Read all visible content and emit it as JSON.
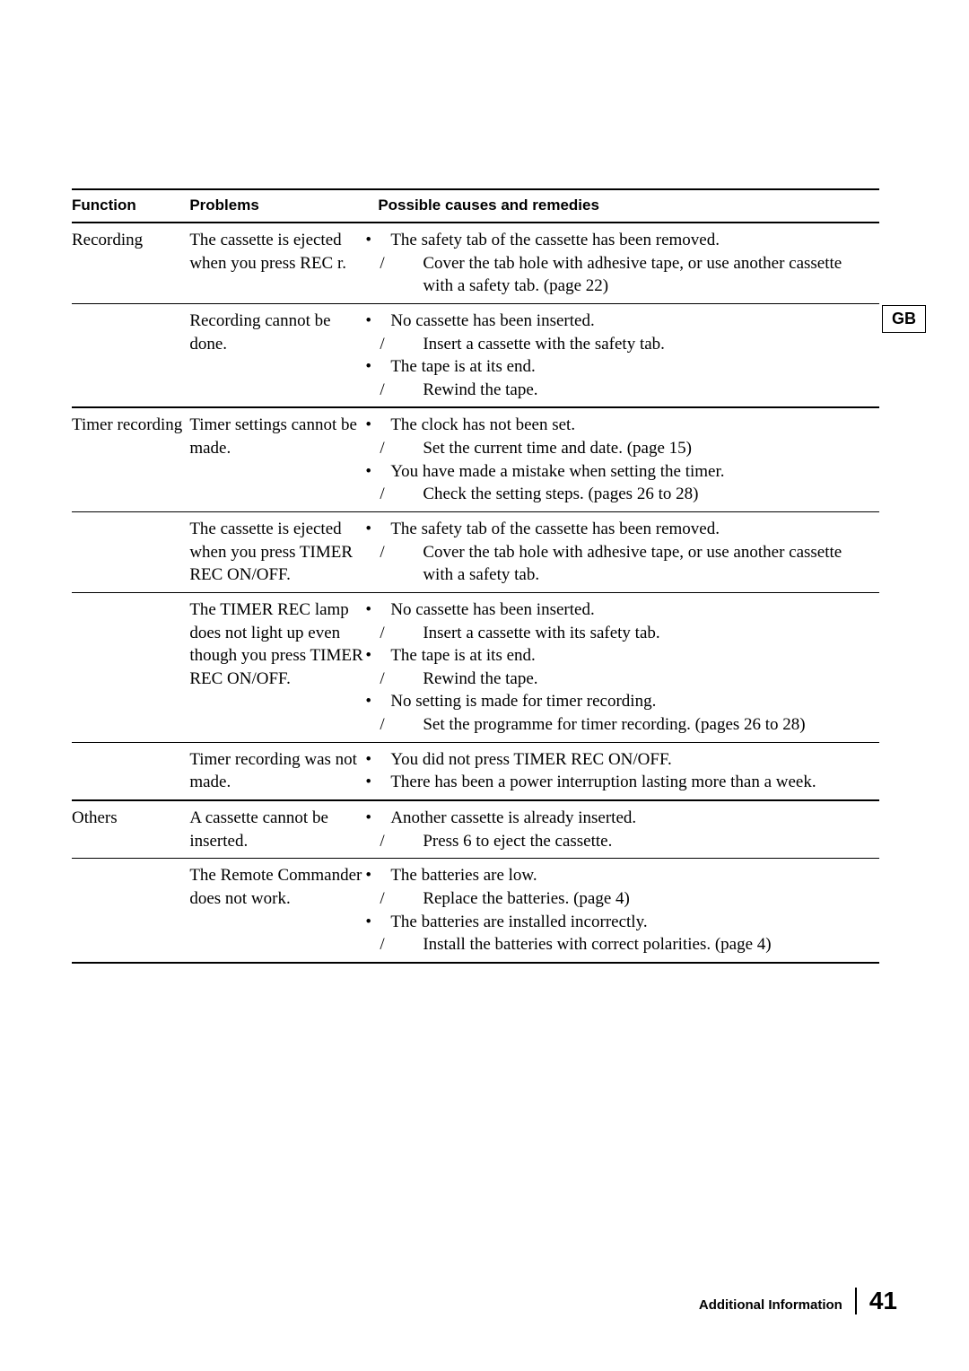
{
  "sideTab": "GB",
  "footer": {
    "section": "Additional Information",
    "page": "41"
  },
  "headers": {
    "function": "Function",
    "problems": "Problems",
    "remedies": "Possible causes and remedies"
  },
  "rows": [
    {
      "function": "Recording",
      "problem": "The cassette is ejected when you press REC r.",
      "remedies": [
        {
          "cause": "The safety tab of the cassette has been removed.",
          "fix": "Cover the tab hole with adhesive tape, or use another cassette with a safety tab. (page 22)"
        }
      ]
    },
    {
      "function": "",
      "problem": "Recording cannot be done.",
      "remedies": [
        {
          "cause": "No cassette has been inserted.",
          "fix": "Insert a cassette with the safety tab."
        },
        {
          "cause": "The tape is at its end.",
          "fix": "Rewind the tape."
        }
      ],
      "sectionEnd": true
    },
    {
      "function": "Timer recording",
      "problem": "Timer settings cannot be made.",
      "remedies": [
        {
          "cause": "The clock has not been set.",
          "fix": "Set the current time and date. (page 15)"
        },
        {
          "cause": "You have made a mistake when setting the timer.",
          "fix": "Check the setting steps. (pages 26 to 28)"
        }
      ]
    },
    {
      "function": "",
      "problem": "The cassette is ejected when you press TIMER REC ON/OFF.",
      "remedies": [
        {
          "cause": "The safety tab of the cassette has been removed.",
          "fix": "Cover the tab hole with adhesive tape, or use another cassette with a safety tab."
        }
      ]
    },
    {
      "function": "",
      "problem": "The TIMER REC lamp does not light up even though you press TIMER REC ON/OFF.",
      "remedies": [
        {
          "cause": "No cassette has been inserted.",
          "fix": "Insert a cassette with its safety tab."
        },
        {
          "cause": "The tape is at its end.",
          "fix": "Rewind the tape."
        },
        {
          "cause": "No setting is made for timer recording.",
          "fix": "Set the programme for timer recording. (pages 26 to 28)"
        }
      ]
    },
    {
      "function": "",
      "problem": "Timer recording was not made.",
      "remedies": [
        {
          "cause": "You did not press TIMER REC ON/OFF."
        },
        {
          "cause": "There has been a power interruption lasting more than a week."
        }
      ],
      "sectionEnd": true
    },
    {
      "function": "Others",
      "problem": "A cassette cannot be inserted.",
      "remedies": [
        {
          "cause": "Another cassette is already inserted.",
          "fix": "Press 6 to eject the cassette."
        }
      ]
    },
    {
      "function": "",
      "problem": "The Remote Commander does not work.",
      "remedies": [
        {
          "cause": "The batteries are low.",
          "fix": "Replace the batteries. (page 4)"
        },
        {
          "cause": "The batteries are installed incorrectly.",
          "fix": "Install the batteries with correct polarities. (page 4)"
        }
      ],
      "sectionEnd": true
    }
  ]
}
